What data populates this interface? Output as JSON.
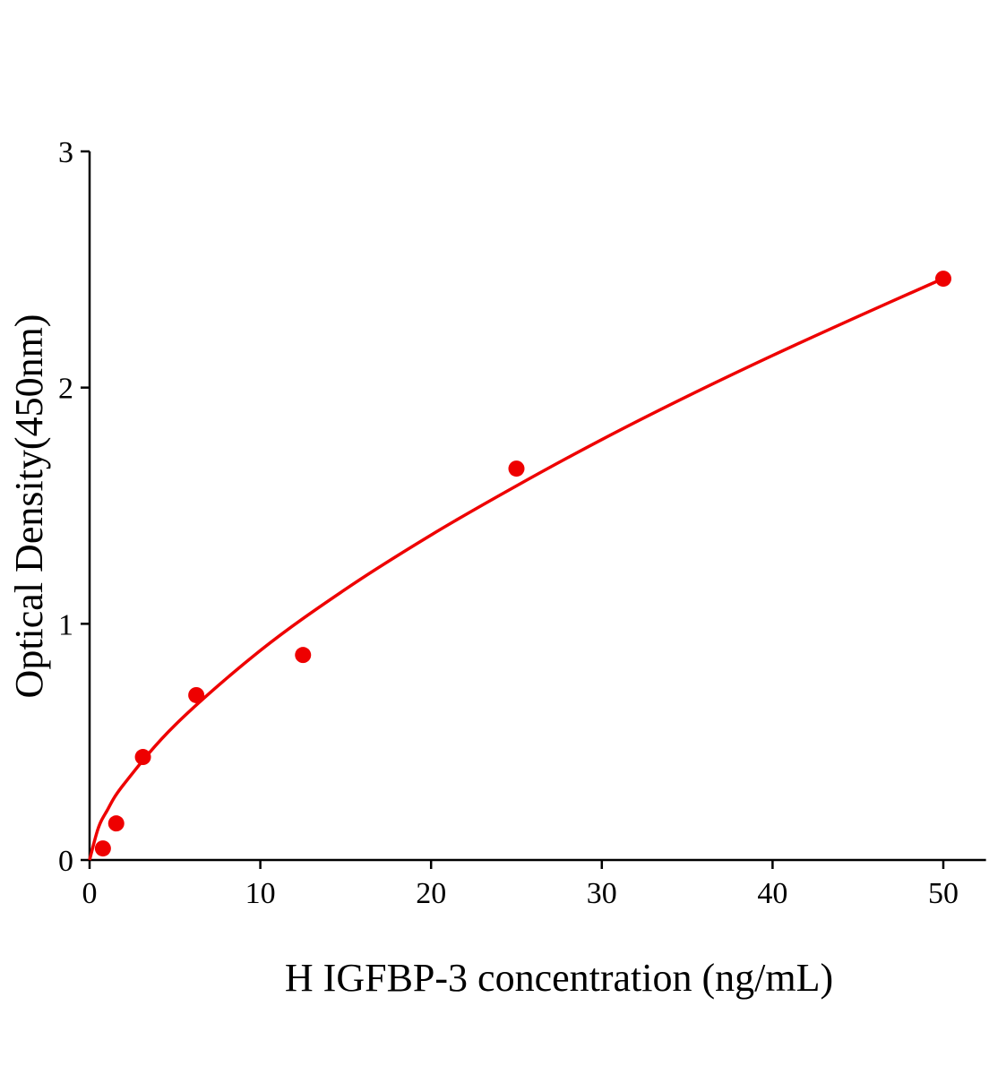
{
  "chart_data": {
    "type": "scatter",
    "title": "",
    "xlabel": "H IGFBP-3 concentration (ng/mL)",
    "ylabel": "Optical Density(450nm)",
    "xlim": [
      0,
      52.5
    ],
    "ylim": [
      0,
      3
    ],
    "xticks": [
      0,
      10,
      20,
      30,
      40,
      50
    ],
    "yticks": [
      0,
      1,
      2,
      3
    ],
    "xtick_labels": [
      "0",
      "10",
      "20",
      "30",
      "40",
      "50"
    ],
    "ytick_labels": [
      "0",
      "1",
      "2",
      "3"
    ],
    "grid": false,
    "legend": "none",
    "color": "#ee0000",
    "points": {
      "x": [
        0.78,
        1.56,
        3.125,
        6.25,
        12.5,
        25,
        50
      ],
      "y": [
        0.049,
        0.155,
        0.436,
        0.698,
        0.868,
        1.657,
        2.461
      ]
    },
    "fit_curve": {
      "x": [
        0,
        0.5,
        1,
        2,
        5,
        10,
        15,
        20,
        25,
        30,
        35,
        40,
        45,
        50
      ],
      "y": [
        0,
        0.133,
        0.206,
        0.32,
        0.571,
        0.887,
        1.147,
        1.376,
        1.584,
        1.78,
        1.963,
        2.136,
        2.301,
        2.462
      ]
    }
  }
}
